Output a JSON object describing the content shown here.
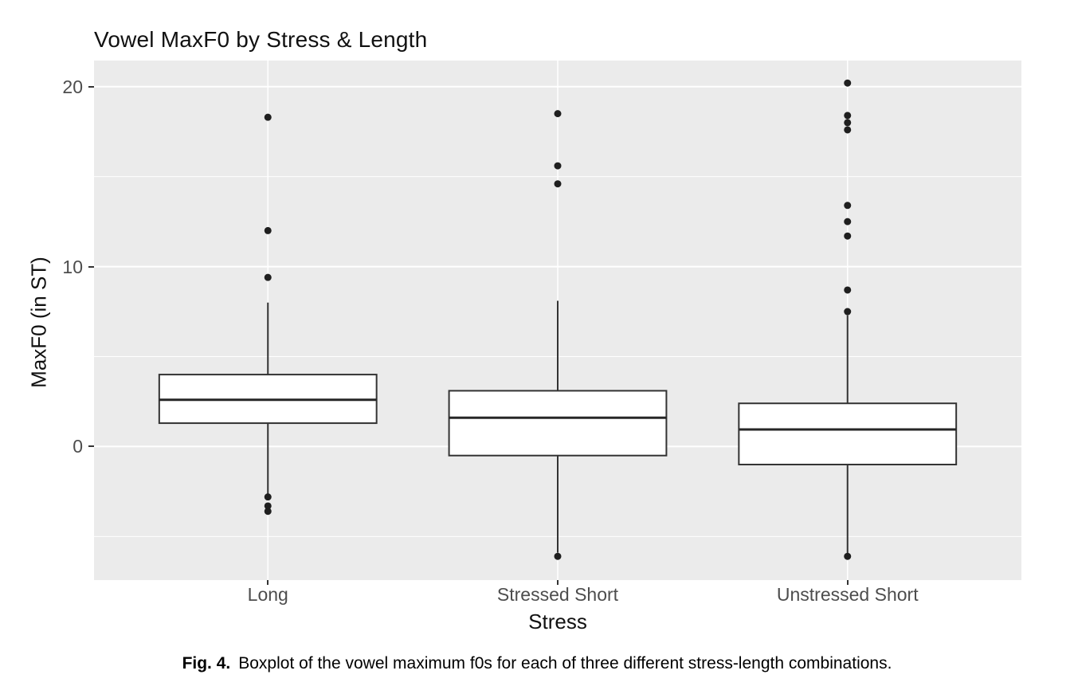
{
  "caption": {
    "label": "Fig. 4.",
    "text": "Boxplot of the vowel maximum f0s for each of three different stress-length combinations."
  },
  "chart_data": {
    "type": "boxplot",
    "title": "Vowel MaxF0 by Stress & Length",
    "xlabel": "Stress",
    "ylabel": "MaxF0 (in ST)",
    "categories": [
      "Long",
      "Stressed Short",
      "Unstressed Short"
    ],
    "ylim": [
      -7.42,
      21.45
    ],
    "yticks_major": [
      0,
      10,
      20
    ],
    "yticks_minor": [
      -5,
      5,
      15
    ],
    "grid": "white major/minor horizontal lines on grey panel; white vertical line at each category",
    "legend": "none",
    "series": [
      {
        "name": "Long",
        "whisker_low": -2.65,
        "q1": 1.3,
        "median": 2.6,
        "q3": 4.0,
        "whisker_high": 8.0,
        "outliers": [
          18.3,
          12.0,
          9.4,
          -2.8,
          -3.3,
          -3.6
        ]
      },
      {
        "name": "Stressed Short",
        "whisker_low": -5.9,
        "q1": -0.5,
        "median": 1.6,
        "q3": 3.1,
        "whisker_high": 8.1,
        "outliers": [
          18.5,
          15.6,
          14.6,
          -6.1
        ]
      },
      {
        "name": "Unstressed Short",
        "whisker_low": -5.95,
        "q1": -1.0,
        "median": 0.95,
        "q3": 2.4,
        "whisker_high": 7.3,
        "outliers": [
          20.2,
          18.4,
          18.0,
          17.6,
          13.4,
          12.5,
          11.7,
          8.7,
          7.5,
          -6.1
        ]
      }
    ],
    "colors": {
      "panel_bg": "#ebebeb",
      "grid": "#ffffff",
      "box_fill": "#ffffff",
      "box_stroke": "#333333",
      "median": "#262626",
      "point": "#1f1f1f",
      "tick_label": "#4d4d4d",
      "axis_title": "#111111"
    }
  }
}
